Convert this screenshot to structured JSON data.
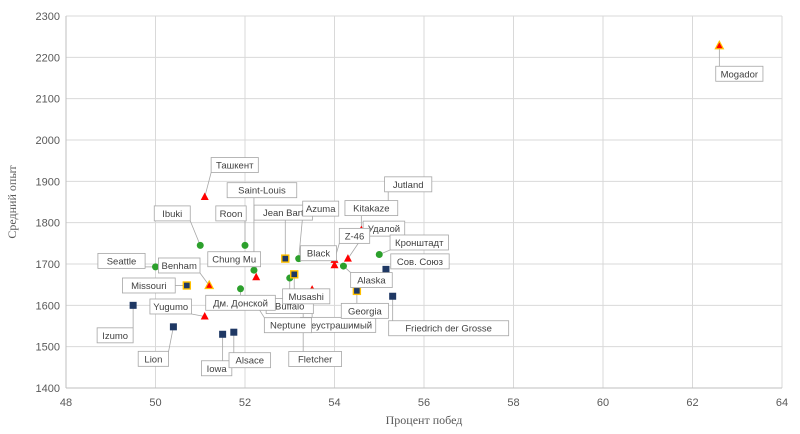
{
  "chart_data": {
    "type": "scatter",
    "xlabel": "Процент побед",
    "ylabel": "Средний опыт",
    "xlim": [
      48,
      64
    ],
    "ylim": [
      1400,
      2300
    ],
    "x_ticks": [
      48,
      50,
      52,
      54,
      56,
      58,
      60,
      62,
      64
    ],
    "y_ticks": [
      1400,
      1500,
      1600,
      1700,
      1800,
      1900,
      2000,
      2100,
      2200,
      2300
    ],
    "grid": true,
    "colors": {
      "battleship": "#1f3864",
      "cruiser": "#2ca02c",
      "destroyer": "#ff0000",
      "aircraft_carrier": "#ffc000",
      "gold_edge": "#ffc000",
      "orange_edge": "#ff8c00"
    },
    "points": [
      {
        "label": "Mogador",
        "x": 62.6,
        "y": 2228,
        "marker": "destroyer_gold"
      },
      {
        "label": "Ташкент",
        "x": 51.1,
        "y": 1862,
        "marker": "destroyer"
      },
      {
        "label": "Jutland",
        "x": 55.2,
        "y": 1825,
        "marker": "destroyer"
      },
      {
        "label": "Kitakaze",
        "x": 54.6,
        "y": 1782,
        "marker": "destroyer"
      },
      {
        "label": "Ibuki",
        "x": 51.0,
        "y": 1745,
        "marker": "cruiser"
      },
      {
        "label": "Roon",
        "x": 52.0,
        "y": 1745,
        "marker": "cruiser"
      },
      {
        "label": "Saint-Louis",
        "x": 52.2,
        "y": 1685,
        "marker": "cruiser"
      },
      {
        "label": "Jean Bart",
        "x": 52.9,
        "y": 1713,
        "marker": "battleship_gold"
      },
      {
        "label": "Azuma",
        "x": 53.2,
        "y": 1713,
        "marker": "cruiser"
      },
      {
        "label": "Удалой",
        "x": 54.3,
        "y": 1713,
        "marker": "destroyer"
      },
      {
        "label": "Z-46",
        "x": 54.0,
        "y": 1710,
        "marker": "destroyer"
      },
      {
        "label": "Кронштадт",
        "x": 55.0,
        "y": 1723,
        "marker": "cruiser"
      },
      {
        "label": "Seattle",
        "x": 50.0,
        "y": 1693,
        "marker": "cruiser"
      },
      {
        "label": "Benham",
        "x": 51.2,
        "y": 1648,
        "marker": "destroyer_gold"
      },
      {
        "label": "Chung Mu",
        "x": 52.25,
        "y": 1668,
        "marker": "destroyer"
      },
      {
        "label": "Black",
        "x": 54.0,
        "y": 1697,
        "marker": "destroyer"
      },
      {
        "label": "Alaska",
        "x": 54.2,
        "y": 1695,
        "marker": "cruiser"
      },
      {
        "label": "Сов. Союз",
        "x": 55.15,
        "y": 1687,
        "marker": "battleship"
      },
      {
        "label": "Buffalo",
        "x": 53.0,
        "y": 1666,
        "marker": "cruiser"
      },
      {
        "label": "Musashi",
        "x": 53.1,
        "y": 1675,
        "marker": "battleship_gold"
      },
      {
        "label": "Missouri",
        "x": 50.7,
        "y": 1648,
        "marker": "battleship_gold"
      },
      {
        "label": "Дм. Донской",
        "x": 51.9,
        "y": 1640,
        "marker": "cruiser"
      },
      {
        "label": "Неустрашимый",
        "x": 53.5,
        "y": 1635,
        "marker": "carrier_orange"
      },
      {
        "label": "Georgia",
        "x": 54.5,
        "y": 1635,
        "marker": "battleship_gold"
      },
      {
        "label": "Friedrich der Grosse",
        "x": 55.3,
        "y": 1622,
        "marker": "battleship"
      },
      {
        "label": "Fletcher",
        "x": 53.3,
        "y": 1625,
        "marker": "destroyer"
      },
      {
        "label": "Neptune",
        "x": 52.2,
        "y": 1610,
        "marker": "cruiser"
      },
      {
        "label": "Izumo",
        "x": 49.5,
        "y": 1600,
        "marker": "battleship"
      },
      {
        "label": "Yugumo",
        "x": 51.1,
        "y": 1573,
        "marker": "destroyer"
      },
      {
        "label": "Lion",
        "x": 50.4,
        "y": 1548,
        "marker": "battleship"
      },
      {
        "label": "Iowa",
        "x": 51.5,
        "y": 1530,
        "marker": "battleship"
      },
      {
        "label": "Alsace",
        "x": 51.75,
        "y": 1535,
        "marker": "battleship"
      }
    ]
  }
}
